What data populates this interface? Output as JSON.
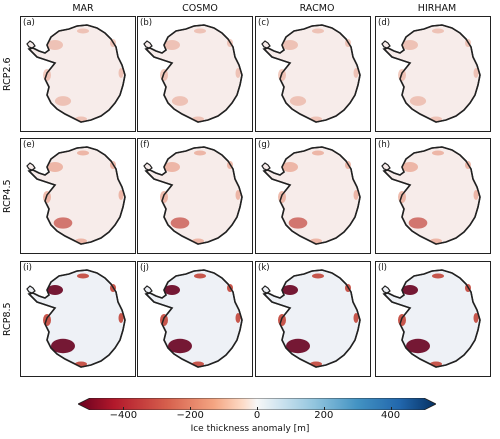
{
  "columns": [
    "MAR",
    "COSMO",
    "RACMO",
    "HIRHAM"
  ],
  "rows": [
    "RCP2.6",
    "RCP4.5",
    "RCP8.5"
  ],
  "panels": [
    [
      "(a)",
      "(b)",
      "(c)",
      "(d)"
    ],
    [
      "(e)",
      "(f)",
      "(g)",
      "(h)"
    ],
    [
      "(i)",
      "(j)",
      "(k)",
      "(l)"
    ]
  ],
  "colorbar": {
    "label": "Ice thickness anomaly [m]",
    "ticks": [
      "−400",
      "−200",
      "0",
      "200",
      "400"
    ],
    "min": -500,
    "max": 500,
    "tick_values": [
      -400,
      -200,
      0,
      200,
      400
    ],
    "colormap": "RdBu",
    "extend": "both"
  },
  "colors": {
    "ice_base": "#f7ecea",
    "ice_cool": "#eef1f6",
    "coast": "#222222",
    "loss_light": "#e8a08a",
    "loss_mid": "#c2453a",
    "loss_dark": "#67001f"
  }
}
